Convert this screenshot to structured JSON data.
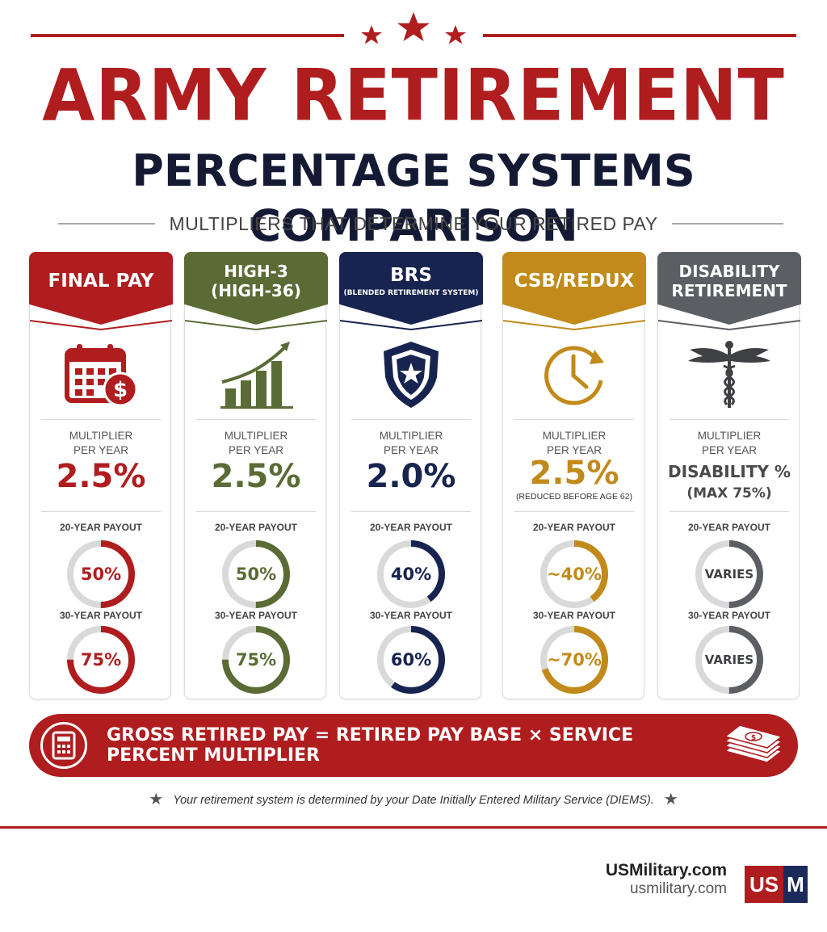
{
  "header": {
    "title": "ARMY RETIREMENT",
    "subtitle": "PERCENTAGE SYSTEMS COMPARISON",
    "tagline": "MULTIPLIERS THAT DETERMINE YOUR RETIRED PAY"
  },
  "colors": {
    "red": "#b01d1f",
    "green": "#5a6b35",
    "navy": "#17244f",
    "gold": "#c18a1b",
    "gray": "#5b5e62",
    "ring_track": "#d9d9d9"
  },
  "cards": [
    {
      "title": "FINAL PAY",
      "subtitle": "",
      "icon": "calendar-dollar-icon",
      "multiplier_label_1": "MULTIPLIER",
      "multiplier_label_2": "PER YEAR",
      "multiplier": "2.5%",
      "multiplier_note": "",
      "payout20_label": "20-YEAR PAYOUT",
      "payout20": "50%",
      "payout20_fraction": 0.5,
      "payout30_label": "30-YEAR PAYOUT",
      "payout30": "75%",
      "payout30_fraction": 0.75
    },
    {
      "title": "HIGH-3",
      "subtitle": "(HIGH-36)",
      "icon": "bar-chart-growth-icon",
      "multiplier_label_1": "MULTIPLIER",
      "multiplier_label_2": "PER YEAR",
      "multiplier": "2.5%",
      "multiplier_note": "",
      "payout20_label": "20-YEAR PAYOUT",
      "payout20": "50%",
      "payout20_fraction": 0.5,
      "payout30_label": "30-YEAR PAYOUT",
      "payout30": "75%",
      "payout30_fraction": 0.75
    },
    {
      "title": "BRS",
      "subtitle": "(BLENDED RETIREMENT SYSTEM)",
      "icon": "shield-star-icon",
      "multiplier_label_1": "MULTIPLIER",
      "multiplier_label_2": "PER YEAR",
      "multiplier": "2.0%",
      "multiplier_note": "",
      "payout20_label": "20-YEAR PAYOUT",
      "payout20": "40%",
      "payout20_fraction": 0.4,
      "payout30_label": "30-YEAR PAYOUT",
      "payout30": "60%",
      "payout30_fraction": 0.6
    },
    {
      "title": "CSB/REDUX",
      "subtitle": "",
      "icon": "clock-arrow-icon",
      "multiplier_label_1": "MULTIPLIER",
      "multiplier_label_2": "PER YEAR",
      "multiplier": "2.5%",
      "multiplier_note": "(REDUCED BEFORE AGE 62)",
      "payout20_label": "20-YEAR PAYOUT",
      "payout20": "~40%",
      "payout20_fraction": 0.4,
      "payout30_label": "30-YEAR PAYOUT",
      "payout30": "~70%",
      "payout30_fraction": 0.7
    },
    {
      "title": "DISABILITY",
      "subtitle": "RETIREMENT",
      "icon": "caduceus-icon",
      "multiplier_label_1": "MULTIPLIER",
      "multiplier_label_2": "PER YEAR",
      "multiplier_text_1": "DISABILITY %",
      "multiplier_text_2": "(MAX 75%)",
      "payout20_label": "20-YEAR PAYOUT",
      "payout20": "VARIES",
      "payout20_fraction": 0.5,
      "payout30_label": "30-YEAR PAYOUT",
      "payout30": "VARIES",
      "payout30_fraction": 0.5
    }
  ],
  "formula": "GROSS RETIRED PAY = RETIRED PAY BASE × SERVICE PERCENT MULTIPLIER",
  "footnote": "Your retirement system is determined by your Date Initially Entered Military Service (DIEMS).",
  "brand": {
    "name": "USMilitary.com",
    "url": "usmilitary.com",
    "logo_left": "US",
    "logo_right": "M"
  }
}
